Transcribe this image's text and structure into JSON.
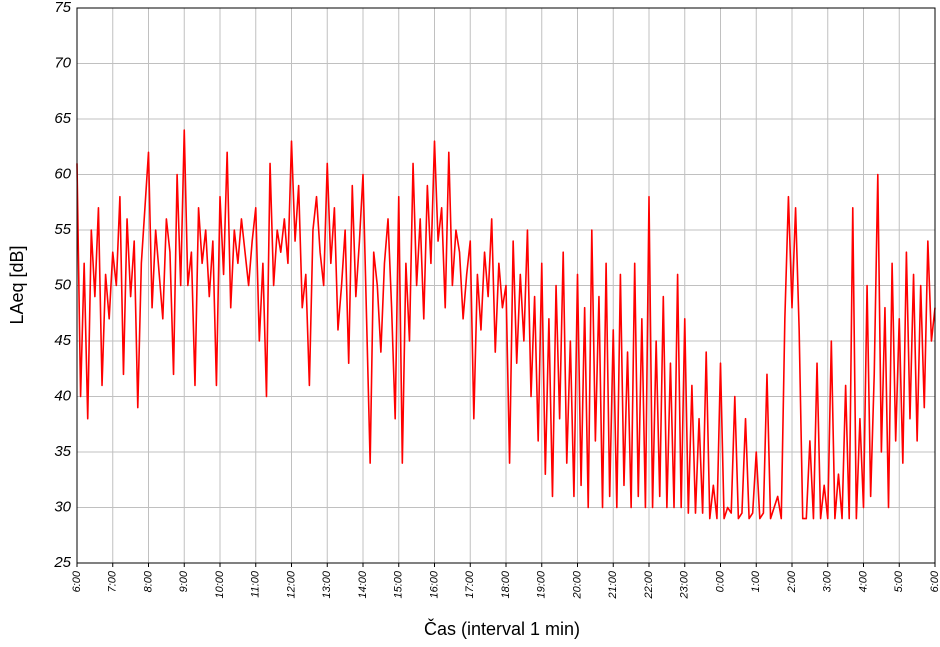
{
  "chart_data": {
    "type": "line",
    "y_label": "LAeq [dB]",
    "x_label": "Čas (interval 1 min)",
    "color": "#ff0000",
    "grid": true,
    "xlim": [
      0,
      1440
    ],
    "ylim": [
      25,
      75
    ],
    "yticks": [
      25,
      30,
      35,
      40,
      45,
      50,
      55,
      60,
      65,
      70,
      75
    ],
    "xticks": [
      {
        "value": 0,
        "label": "6:00"
      },
      {
        "value": 60,
        "label": "7:00"
      },
      {
        "value": 120,
        "label": "8:00"
      },
      {
        "value": 180,
        "label": "9:00"
      },
      {
        "value": 240,
        "label": "10:00"
      },
      {
        "value": 300,
        "label": "11:00"
      },
      {
        "value": 360,
        "label": "12:00"
      },
      {
        "value": 420,
        "label": "13:00"
      },
      {
        "value": 480,
        "label": "14:00"
      },
      {
        "value": 540,
        "label": "15:00"
      },
      {
        "value": 600,
        "label": "16:00"
      },
      {
        "value": 660,
        "label": "17:00"
      },
      {
        "value": 720,
        "label": "18:00"
      },
      {
        "value": 780,
        "label": "19:00"
      },
      {
        "value": 840,
        "label": "20:00"
      },
      {
        "value": 900,
        "label": "21:00"
      },
      {
        "value": 960,
        "label": "22:00"
      },
      {
        "value": 1020,
        "label": "23:00"
      },
      {
        "value": 1080,
        "label": "0:00"
      },
      {
        "value": 1140,
        "label": "1:00"
      },
      {
        "value": 1200,
        "label": "2:00"
      },
      {
        "value": 1260,
        "label": "3:00"
      },
      {
        "value": 1320,
        "label": "4:00"
      },
      {
        "value": 1380,
        "label": "5:00"
      },
      {
        "value": 1440,
        "label": "6:00"
      }
    ],
    "x": [
      0,
      6,
      12,
      18,
      24,
      30,
      36,
      42,
      48,
      54,
      60,
      66,
      72,
      78,
      84,
      90,
      96,
      102,
      108,
      114,
      120,
      126,
      132,
      138,
      144,
      150,
      156,
      162,
      168,
      174,
      180,
      186,
      192,
      198,
      204,
      210,
      216,
      222,
      228,
      234,
      240,
      246,
      252,
      258,
      264,
      270,
      276,
      282,
      288,
      294,
      300,
      306,
      312,
      318,
      324,
      330,
      336,
      342,
      348,
      354,
      360,
      366,
      372,
      378,
      384,
      390,
      396,
      402,
      408,
      414,
      420,
      426,
      432,
      438,
      444,
      450,
      456,
      462,
      468,
      474,
      480,
      486,
      492,
      498,
      504,
      510,
      516,
      522,
      528,
      534,
      540,
      546,
      552,
      558,
      564,
      570,
      576,
      582,
      588,
      594,
      600,
      606,
      612,
      618,
      624,
      630,
      636,
      642,
      648,
      654,
      660,
      666,
      672,
      678,
      684,
      690,
      696,
      702,
      708,
      714,
      720,
      726,
      732,
      738,
      744,
      750,
      756,
      762,
      768,
      774,
      780,
      786,
      792,
      798,
      804,
      810,
      816,
      822,
      828,
      834,
      840,
      846,
      852,
      858,
      864,
      870,
      876,
      882,
      888,
      894,
      900,
      906,
      912,
      918,
      924,
      930,
      936,
      942,
      948,
      954,
      960,
      966,
      972,
      978,
      984,
      990,
      996,
      1002,
      1008,
      1014,
      1020,
      1026,
      1032,
      1038,
      1044,
      1050,
      1056,
      1062,
      1068,
      1074,
      1080,
      1086,
      1092,
      1098,
      1104,
      1110,
      1116,
      1122,
      1128,
      1134,
      1140,
      1146,
      1152,
      1158,
      1164,
      1170,
      1176,
      1182,
      1188,
      1194,
      1200,
      1206,
      1212,
      1218,
      1224,
      1230,
      1236,
      1242,
      1248,
      1254,
      1260,
      1266,
      1272,
      1278,
      1284,
      1290,
      1296,
      1302,
      1308,
      1314,
      1320,
      1326,
      1332,
      1338,
      1344,
      1350,
      1356,
      1362,
      1368,
      1374,
      1380,
      1386,
      1392,
      1398,
      1404,
      1410,
      1416,
      1422,
      1428,
      1434,
      1440
    ],
    "values": [
      61,
      40,
      52,
      38,
      55,
      49,
      57,
      41,
      51,
      47,
      53,
      50,
      58,
      42,
      56,
      49,
      54,
      39,
      52,
      57,
      62,
      48,
      55,
      51,
      47,
      56,
      53,
      42,
      60,
      50,
      64,
      50,
      53,
      41,
      57,
      52,
      55,
      49,
      54,
      41,
      58,
      51,
      62,
      48,
      55,
      52,
      56,
      53,
      50,
      54,
      57,
      45,
      52,
      40,
      61,
      50,
      55,
      53,
      56,
      52,
      63,
      54,
      59,
      48,
      51,
      41,
      55,
      58,
      53,
      50,
      61,
      52,
      57,
      46,
      50,
      55,
      43,
      59,
      49,
      54,
      60,
      47,
      34,
      53,
      50,
      44,
      52,
      56,
      48,
      38,
      58,
      34,
      52,
      45,
      61,
      50,
      56,
      47,
      59,
      52,
      63,
      54,
      57,
      48,
      62,
      50,
      55,
      53,
      47,
      51,
      54,
      38,
      51,
      46,
      53,
      49,
      56,
      44,
      52,
      48,
      50,
      34,
      54,
      43,
      51,
      45,
      55,
      40,
      49,
      36,
      52,
      33,
      47,
      31,
      50,
      38,
      53,
      34,
      45,
      31,
      51,
      32,
      48,
      30,
      55,
      36,
      49,
      30,
      52,
      31,
      46,
      30,
      51,
      32,
      44,
      30,
      52,
      31,
      47,
      30,
      58,
      30,
      45,
      31,
      49,
      30,
      43,
      30,
      51,
      30,
      47,
      29.5,
      41,
      29.5,
      38,
      29.5,
      44,
      29,
      32,
      29,
      43,
      29,
      30,
      29.5,
      40,
      29,
      29.5,
      38,
      29,
      29.5,
      35,
      29,
      29.5,
      42,
      29,
      30,
      31,
      29,
      47,
      58,
      48,
      57,
      46,
      29,
      29,
      36,
      29,
      43,
      29,
      32,
      29,
      45,
      29,
      33,
      29,
      41,
      29,
      57,
      29,
      38,
      30,
      50,
      31,
      42,
      60,
      35,
      48,
      30,
      52,
      36,
      47,
      34,
      53,
      38,
      51,
      36,
      50,
      39,
      54,
      45,
      48
    ]
  }
}
